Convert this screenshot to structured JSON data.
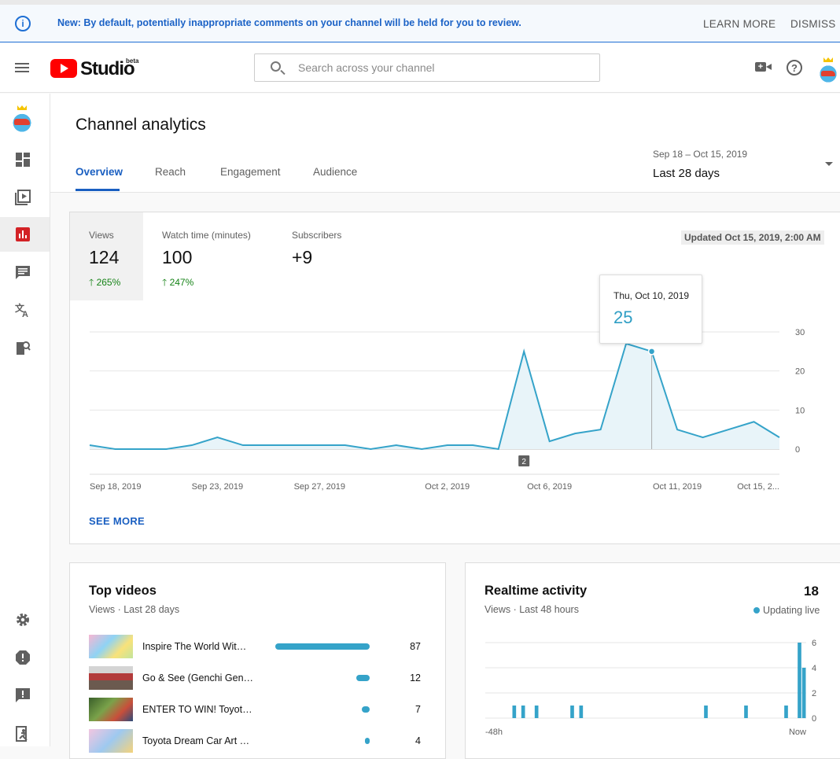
{
  "banner": {
    "message": "New: By default, potentially inappropriate comments on your channel will be held for you to review.",
    "learn_more": "LEARN MORE",
    "dismiss": "DISMISS",
    "icon": "info-icon"
  },
  "header": {
    "logo_text": "Studio",
    "logo_badge": "beta",
    "search_placeholder": "Search across your channel"
  },
  "page": {
    "title": "Channel analytics",
    "tabs": [
      {
        "label": "Overview",
        "active": true
      },
      {
        "label": "Reach",
        "active": false
      },
      {
        "label": "Engagement",
        "active": false
      },
      {
        "label": "Audience",
        "active": false
      }
    ],
    "date_range": {
      "sub": "Sep 18 – Oct 15, 2019",
      "main": "Last 28 days"
    }
  },
  "sidebar": {
    "items": [
      {
        "name": "dashboard",
        "icon": "dashboard-icon"
      },
      {
        "name": "videos",
        "icon": "videos-icon"
      },
      {
        "name": "analytics",
        "icon": "analytics-icon",
        "active": true
      },
      {
        "name": "comments",
        "icon": "comments-icon"
      },
      {
        "name": "translations",
        "icon": "translate-icon"
      },
      {
        "name": "copyright",
        "icon": "copyright-icon"
      },
      {
        "name": "settings",
        "icon": "gear-icon"
      },
      {
        "name": "feedback-alert",
        "icon": "alert-icon"
      },
      {
        "name": "send-feedback",
        "icon": "feedback-icon"
      },
      {
        "name": "creator-studio-classic",
        "icon": "exit-icon"
      }
    ]
  },
  "metrics": [
    {
      "label": "Views",
      "value": "124",
      "delta": "265%"
    },
    {
      "label": "Watch time (minutes)",
      "value": "100",
      "delta": "247%"
    },
    {
      "label": "Subscribers",
      "value": "+9",
      "delta": ""
    }
  ],
  "updated": "Updated Oct 15, 2019, 2:00 AM",
  "see_more": "SEE MORE",
  "tooltip": {
    "date": "Thu, Oct 10, 2019",
    "value": "25"
  },
  "chart_data": [
    {
      "type": "area",
      "series": [
        {
          "name": "Views",
          "values": [
            1,
            0,
            0,
            0,
            1,
            3,
            1,
            1,
            1,
            1,
            1,
            0,
            1,
            0,
            1,
            1,
            0,
            25,
            2,
            4,
            5,
            27,
            25,
            5,
            3,
            5,
            7,
            3
          ]
        }
      ],
      "x": [
        "Sep 18",
        "Sep 19",
        "Sep 20",
        "Sep 21",
        "Sep 22",
        "Sep 23",
        "Sep 24",
        "Sep 25",
        "Sep 26",
        "Sep 27",
        "Sep 28",
        "Sep 29",
        "Sep 30",
        "Oct 1",
        "Oct 2",
        "Oct 3",
        "Oct 4",
        "Oct 5",
        "Oct 6",
        "Oct 7",
        "Oct 8",
        "Oct 9",
        "Oct 10",
        "Oct 11",
        "Oct 12",
        "Oct 13",
        "Oct 14",
        "Oct 15"
      ],
      "x_tick_labels": [
        "Sep 18, 2019",
        "Sep 23, 2019",
        "Sep 27, 2019",
        "Oct 2, 2019",
        "Oct 6, 2019",
        "Oct 11, 2019",
        "Oct 15, 2..."
      ],
      "x_tick_indices": [
        0,
        5,
        9,
        14,
        18,
        23,
        27
      ],
      "y_ticks": [
        "0",
        "10",
        "20",
        "30"
      ],
      "ylim": [
        0,
        30
      ],
      "highlight_index": 22,
      "marker_label": "2",
      "marker_index": 17,
      "grid": true,
      "color": "#35a3c9"
    },
    {
      "type": "bar",
      "title": "Realtime activity",
      "values": [
        0,
        0,
        0,
        0,
        0,
        0,
        1,
        0,
        1,
        0,
        0,
        1,
        0,
        0,
        0,
        0,
        0,
        0,
        0,
        1,
        0,
        1,
        0,
        0,
        0,
        0,
        0,
        0,
        0,
        0,
        0,
        0,
        0,
        0,
        0,
        0,
        0,
        0,
        0,
        0,
        0,
        0,
        0,
        0,
        0,
        0,
        0,
        0,
        0,
        1,
        0,
        0,
        0,
        0,
        0,
        0,
        0,
        0,
        1,
        0,
        0,
        0,
        0,
        0,
        0,
        0,
        0,
        1,
        0,
        0,
        6,
        4
      ],
      "x_tick_labels": [
        "-48h",
        "Now"
      ],
      "y_ticks": [
        "0",
        "2",
        "4",
        "6"
      ],
      "ylim": [
        0,
        6
      ],
      "color": "#35a3c9"
    }
  ],
  "top_videos": {
    "title": "Top videos",
    "subtitle": "Views · Last 28 days",
    "rows": [
      {
        "title": "Inspire The World Wit…",
        "views": 87,
        "count": "87"
      },
      {
        "title": "Go & See (Genchi Gen…",
        "views": 12,
        "count": "12"
      },
      {
        "title": "ENTER TO WIN! Toyot…",
        "views": 7,
        "count": "7"
      },
      {
        "title": "Toyota Dream Car Art …",
        "views": 4,
        "count": "4"
      }
    ]
  },
  "realtime": {
    "title": "Realtime activity",
    "count": "18",
    "subtitle": "Views · Last 48 hours",
    "live": "Updating live"
  }
}
